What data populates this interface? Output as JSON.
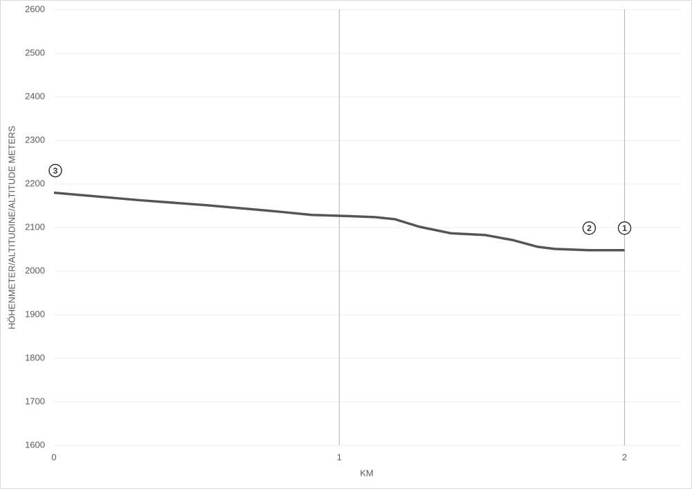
{
  "chart_data": {
    "type": "line",
    "x_label": "KM",
    "y_label": "HÖHENMETER/ALTITUDINE/ALTITUDE METERS",
    "x": [
      0,
      0.296,
      0.54,
      0.78,
      0.904,
      1.0,
      1.124,
      1.196,
      1.28,
      1.39,
      1.51,
      1.61,
      1.694,
      1.755,
      1.876,
      2.0
    ],
    "series": [
      {
        "name": "Altitude",
        "color": "#555555",
        "values": [
          2180,
          2163,
          2151,
          2137,
          2129,
          2127,
          2124,
          2119,
          2102,
          2087,
          2083,
          2071,
          2056,
          2051,
          2048,
          2048
        ]
      }
    ],
    "xlim": [
      0,
      2.2
    ],
    "xticks": [
      0,
      1,
      2
    ],
    "ylim": [
      1600,
      2600
    ],
    "yticks": [
      1600,
      1700,
      1800,
      1900,
      2000,
      2100,
      2200,
      2300,
      2400,
      2500,
      2600
    ],
    "grid": true,
    "annotations": [
      {
        "text": "3",
        "x": 0
      },
      {
        "text": "2",
        "x": 1.876
      },
      {
        "text": "1",
        "x": 2.0
      }
    ]
  }
}
